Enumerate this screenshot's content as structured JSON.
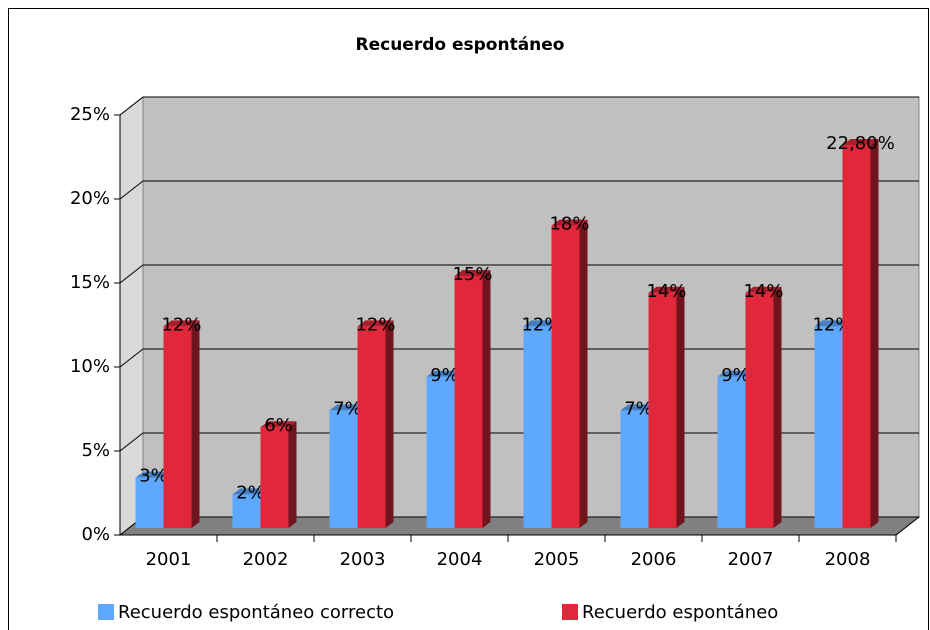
{
  "chart_data": {
    "type": "bar",
    "title": "Recuerdo espontáneo",
    "categories": [
      "2001",
      "2002",
      "2003",
      "2004",
      "2005",
      "2006",
      "2007",
      "2008"
    ],
    "series": [
      {
        "name": "Recuerdo espontáneo correcto",
        "color": "#5fa8ff",
        "values": [
          3,
          2,
          7,
          9,
          12,
          7,
          9,
          12
        ],
        "value_labels": [
          "3%",
          "2%",
          "7%",
          "9%",
          "12%",
          "7%",
          "9%",
          "12%"
        ]
      },
      {
        "name": "Recuerdo espontáneo",
        "color": "#e0283a",
        "values": [
          12,
          6,
          12,
          15,
          18,
          14,
          14,
          22.8
        ],
        "value_labels": [
          "12%",
          "6%",
          "12%",
          "15%",
          "18%",
          "14%",
          "14%",
          "22,80%"
        ]
      }
    ],
    "ylim": [
      0,
      25
    ],
    "yticks": [
      {
        "value": 0,
        "label": "0%"
      },
      {
        "value": 5,
        "label": "5%"
      },
      {
        "value": 10,
        "label": "10%"
      },
      {
        "value": 15,
        "label": "15%"
      },
      {
        "value": 20,
        "label": "20%"
      },
      {
        "value": 25,
        "label": "25%"
      }
    ],
    "grid": true
  }
}
